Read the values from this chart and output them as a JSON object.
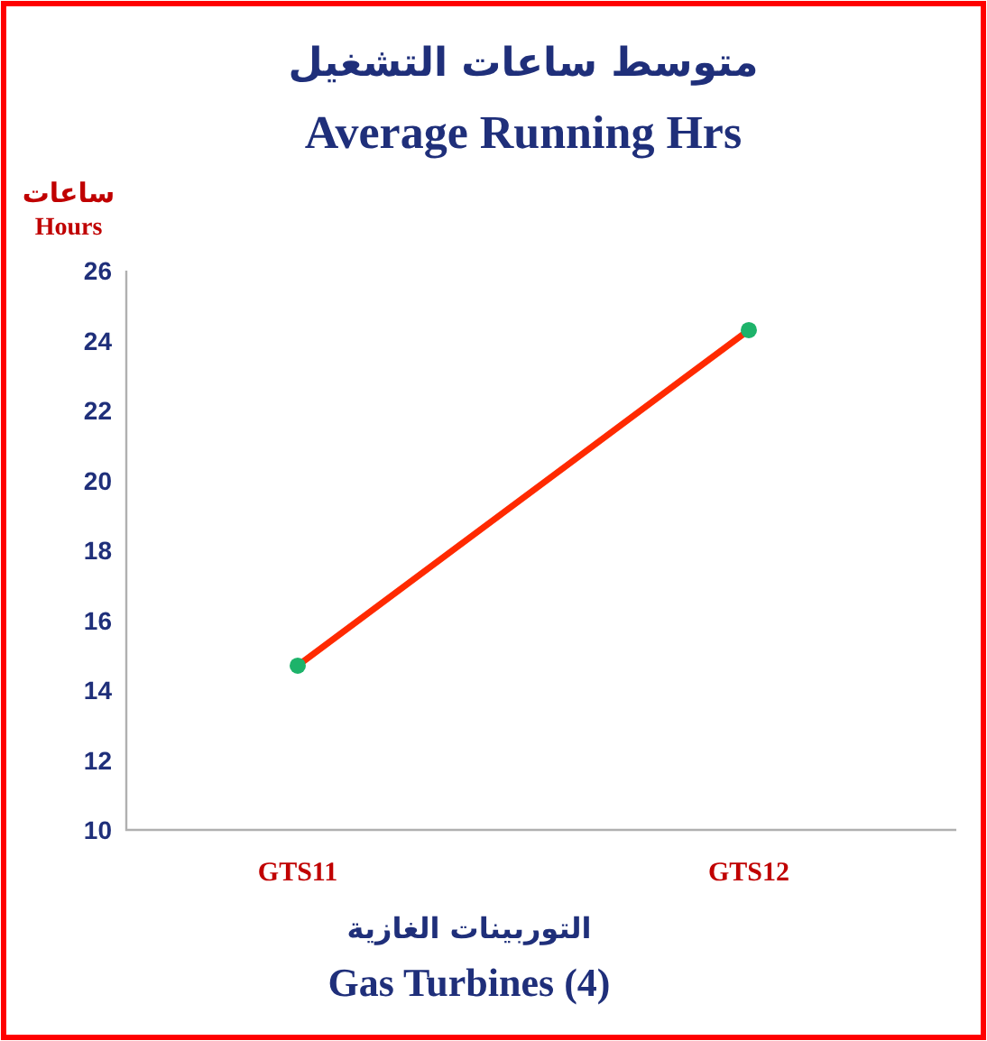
{
  "chart_data": {
    "type": "line",
    "title": "متوسط ساعات التشغيل",
    "subtitle": "Average Running Hrs",
    "xlabel": "Gas Turbines (4)",
    "ylabel": "Hours",
    "annotations": [
      "التوربينات الغازية",
      "ساعات"
    ],
    "categories": [
      "GTS11",
      "GTS12"
    ],
    "series": [
      {
        "color": "#ff2a00",
        "values": [
          14.7,
          24.3
        ]
      }
    ],
    "marker": "circle",
    "ylim": [
      10,
      26
    ],
    "yticks": [
      10,
      12,
      14,
      16,
      18,
      20,
      22,
      24,
      26
    ]
  }
}
